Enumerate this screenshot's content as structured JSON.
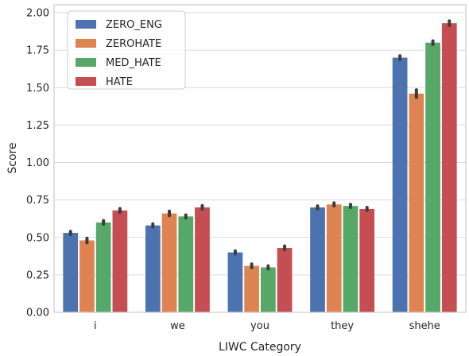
{
  "chart_data": {
    "type": "bar",
    "title": "",
    "xlabel": "LIWC Category",
    "ylabel": "Score",
    "categories": [
      "i",
      "we",
      "you",
      "they",
      "shehe"
    ],
    "ylim": [
      0,
      2.0
    ],
    "yticks": [
      0.0,
      0.25,
      0.5,
      0.75,
      1.0,
      1.25,
      1.5,
      1.75,
      2.0
    ],
    "ytick_labels": [
      "0.00",
      "0.25",
      "0.50",
      "0.75",
      "1.00",
      "1.25",
      "1.50",
      "1.75",
      "2.00"
    ],
    "grid": true,
    "legend_position": "top-left",
    "series": [
      {
        "name": "ZERO_ENG",
        "color": "#4c72b0",
        "values": [
          0.53,
          0.58,
          0.4,
          0.7,
          1.7
        ],
        "err": [
          0.01,
          0.01,
          0.01,
          0.01,
          0.012
        ]
      },
      {
        "name": "ZEROHATE",
        "color": "#dd8452",
        "values": [
          0.48,
          0.66,
          0.31,
          0.72,
          1.46
        ],
        "err": [
          0.015,
          0.015,
          0.012,
          0.01,
          0.025
        ]
      },
      {
        "name": "MED_HATE",
        "color": "#55a868",
        "values": [
          0.6,
          0.64,
          0.3,
          0.71,
          1.8
        ],
        "err": [
          0.012,
          0.01,
          0.01,
          0.01,
          0.012
        ]
      },
      {
        "name": "HATE",
        "color": "#c44e52",
        "values": [
          0.68,
          0.7,
          0.43,
          0.69,
          1.93
        ],
        "err": [
          0.012,
          0.012,
          0.012,
          0.01,
          0.015
        ]
      }
    ]
  }
}
